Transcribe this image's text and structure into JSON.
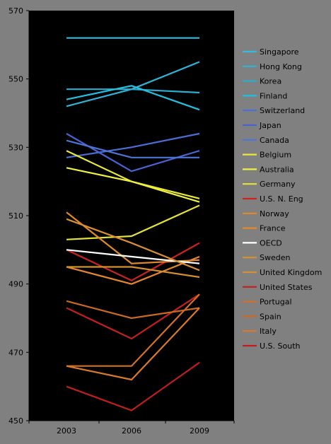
{
  "chart_data": {
    "type": "line",
    "title": "",
    "xlabel": "",
    "ylabel": "",
    "x": [
      "2003",
      "2006",
      "2009"
    ],
    "ylim": [
      450,
      570
    ],
    "yticks": [
      450,
      470,
      490,
      510,
      530,
      550,
      570
    ],
    "grid": false,
    "legend_position": "right",
    "plot_background": "#000000",
    "page_background": "#808080",
    "series": [
      {
        "name": "Singapore",
        "values": [
          562,
          562,
          562
        ],
        "color": "#33BBDD"
      },
      {
        "name": "Hong Kong",
        "values": [
          542,
          547,
          555
        ],
        "color": "#2FB3D6"
      },
      {
        "name": "Korea",
        "values": [
          547,
          547,
          546
        ],
        "color": "#28AED0"
      },
      {
        "name": "Finland",
        "values": [
          544,
          548,
          541
        ],
        "color": "#22C0E0"
      },
      {
        "name": "Switzerland",
        "values": [
          527,
          530,
          534
        ],
        "color": "#4A6FD8"
      },
      {
        "name": "Japan",
        "values": [
          534,
          523,
          529
        ],
        "color": "#4A63D4"
      },
      {
        "name": "Canada",
        "values": [
          532,
          527,
          527
        ],
        "color": "#4E74D8"
      },
      {
        "name": "Belgium",
        "values": [
          529,
          520,
          515
        ],
        "color": "#E8E83A"
      },
      {
        "name": "Australia",
        "values": [
          524,
          520,
          514
        ],
        "color": "#F0F040"
      },
      {
        "name": "Germany",
        "values": [
          503,
          504,
          513
        ],
        "color": "#E4E238"
      },
      {
        "name": "U.S. N. Eng",
        "values": [
          500,
          491,
          502
        ],
        "color": "#CC2222"
      },
      {
        "name": "Norway",
        "values": [
          495,
          490,
          498
        ],
        "color": "#E4862A"
      },
      {
        "name": "France",
        "values": [
          511,
          496,
          497
        ],
        "color": "#E08A2C"
      },
      {
        "name": "OECD",
        "values": [
          500,
          498,
          496
        ],
        "color": "#FFFFFF"
      },
      {
        "name": "Sweden",
        "values": [
          509,
          502,
          494
        ],
        "color": "#D89030"
      },
      {
        "name": "United Kingdom",
        "values": [
          495,
          495,
          492
        ],
        "color": "#D4902E"
      },
      {
        "name": "United States",
        "values": [
          483,
          474,
          487
        ],
        "color": "#C42020"
      },
      {
        "name": "Portugal",
        "values": [
          466,
          466,
          487
        ],
        "color": "#D0702A"
      },
      {
        "name": "Spain",
        "values": [
          485,
          480,
          483
        ],
        "color": "#C86A24"
      },
      {
        "name": "Italy",
        "values": [
          466,
          462,
          483
        ],
        "color": "#D87A2A"
      },
      {
        "name": "U.S. South",
        "values": [
          460,
          453,
          467
        ],
        "color": "#C01E1E"
      }
    ]
  }
}
